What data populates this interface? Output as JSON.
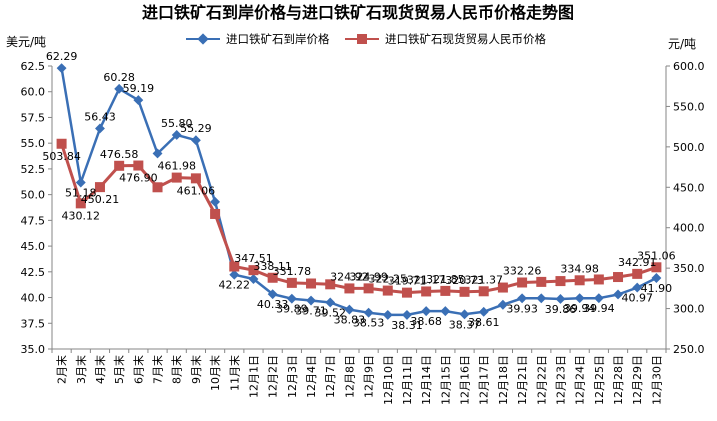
{
  "chart_data": {
    "type": "line",
    "title": "进口铁矿石到岸价格与进口铁矿石现货贸易人民币价格走势图",
    "y_left_unit": "美元/吨",
    "y_right_unit": "元/吨",
    "y_left_range": [
      35.0,
      62.5
    ],
    "y_left_ticks": [
      "62.5",
      "60.0",
      "57.5",
      "55.0",
      "52.5",
      "50.0",
      "47.5",
      "45.0",
      "42.5",
      "40.0",
      "37.5",
      "35.0"
    ],
    "y_right_range": [
      250.0,
      600.0
    ],
    "y_right_ticks": [
      "600.0",
      "550.0",
      "500.0",
      "450.0",
      "400.0",
      "350.0",
      "300.0",
      "250.0"
    ],
    "categories": [
      "2月末",
      "3月末",
      "4月末",
      "5月末",
      "6月末",
      "7月末",
      "8月末",
      "9月末",
      "10月末",
      "11月末",
      "12月1日",
      "12月2日",
      "12月3日",
      "12月4日",
      "12月7日",
      "12月8日",
      "12月9日",
      "12月10日",
      "12月11日",
      "12月14日",
      "12月15日",
      "12月16日",
      "12月17日",
      "12月18日",
      "12月21日",
      "12月22日",
      "12月23日",
      "12月24日",
      "12月25日",
      "12月28日",
      "12月29日",
      "12月30日"
    ],
    "series": [
      {
        "name": "进口铁矿石到岸价格",
        "axis": "left",
        "color": "#3a6fb5",
        "marker": "diamond",
        "values": [
          62.29,
          51.18,
          56.43,
          60.28,
          59.19,
          54.0,
          55.8,
          55.29,
          49.3,
          42.22,
          41.8,
          40.33,
          39.89,
          39.71,
          39.52,
          38.83,
          38.53,
          38.31,
          38.31,
          38.68,
          38.68,
          38.37,
          38.61,
          39.3,
          39.93,
          39.93,
          39.86,
          39.94,
          39.94,
          40.3,
          40.97,
          41.9
        ],
        "labels": [
          "62.29",
          "51.18",
          "56.43",
          "60.28",
          "59.19",
          "",
          "55.80",
          "55.29",
          "",
          "42.22",
          "",
          "40.33",
          "39.89",
          "39.71",
          "39.52",
          "38.83",
          "38.53",
          "",
          "38.31",
          "38.68",
          "",
          "38.37",
          "38.61",
          "",
          "39.93",
          "",
          "39.86",
          "39.94",
          "39.94",
          "",
          "40.97",
          "41.90"
        ]
      },
      {
        "name": "进口铁矿石现货贸易人民币价格",
        "axis": "right",
        "color": "#c0504d",
        "marker": "square",
        "values": [
          503.84,
          430.12,
          450.21,
          476.58,
          476.9,
          450.0,
          461.98,
          461.06,
          417.0,
          352.0,
          347.51,
          338.11,
          331.78,
          331.0,
          330.0,
          324.92,
          324.99,
          322.25,
          319.71,
          321.17,
          321.85,
          320.73,
          321.37,
          326.0,
          332.26,
          333.0,
          334.0,
          334.98,
          336.0,
          339.0,
          342.91,
          351.06
        ],
        "labels": [
          "503.84",
          "430.12",
          "450.21",
          "476.58",
          "476.90",
          "",
          "461.98",
          "461.06",
          "",
          "",
          "347.51",
          "338.11",
          "331.78",
          "",
          "",
          "324.92",
          "324.99",
          "322.25",
          "319.71",
          "321.17",
          "321.85",
          "320.73",
          "321.37",
          "",
          "332.26",
          "",
          "",
          "334.98",
          "",
          "",
          "342.91",
          "351.06"
        ]
      }
    ],
    "legend_position": "top-center",
    "grid": false
  }
}
